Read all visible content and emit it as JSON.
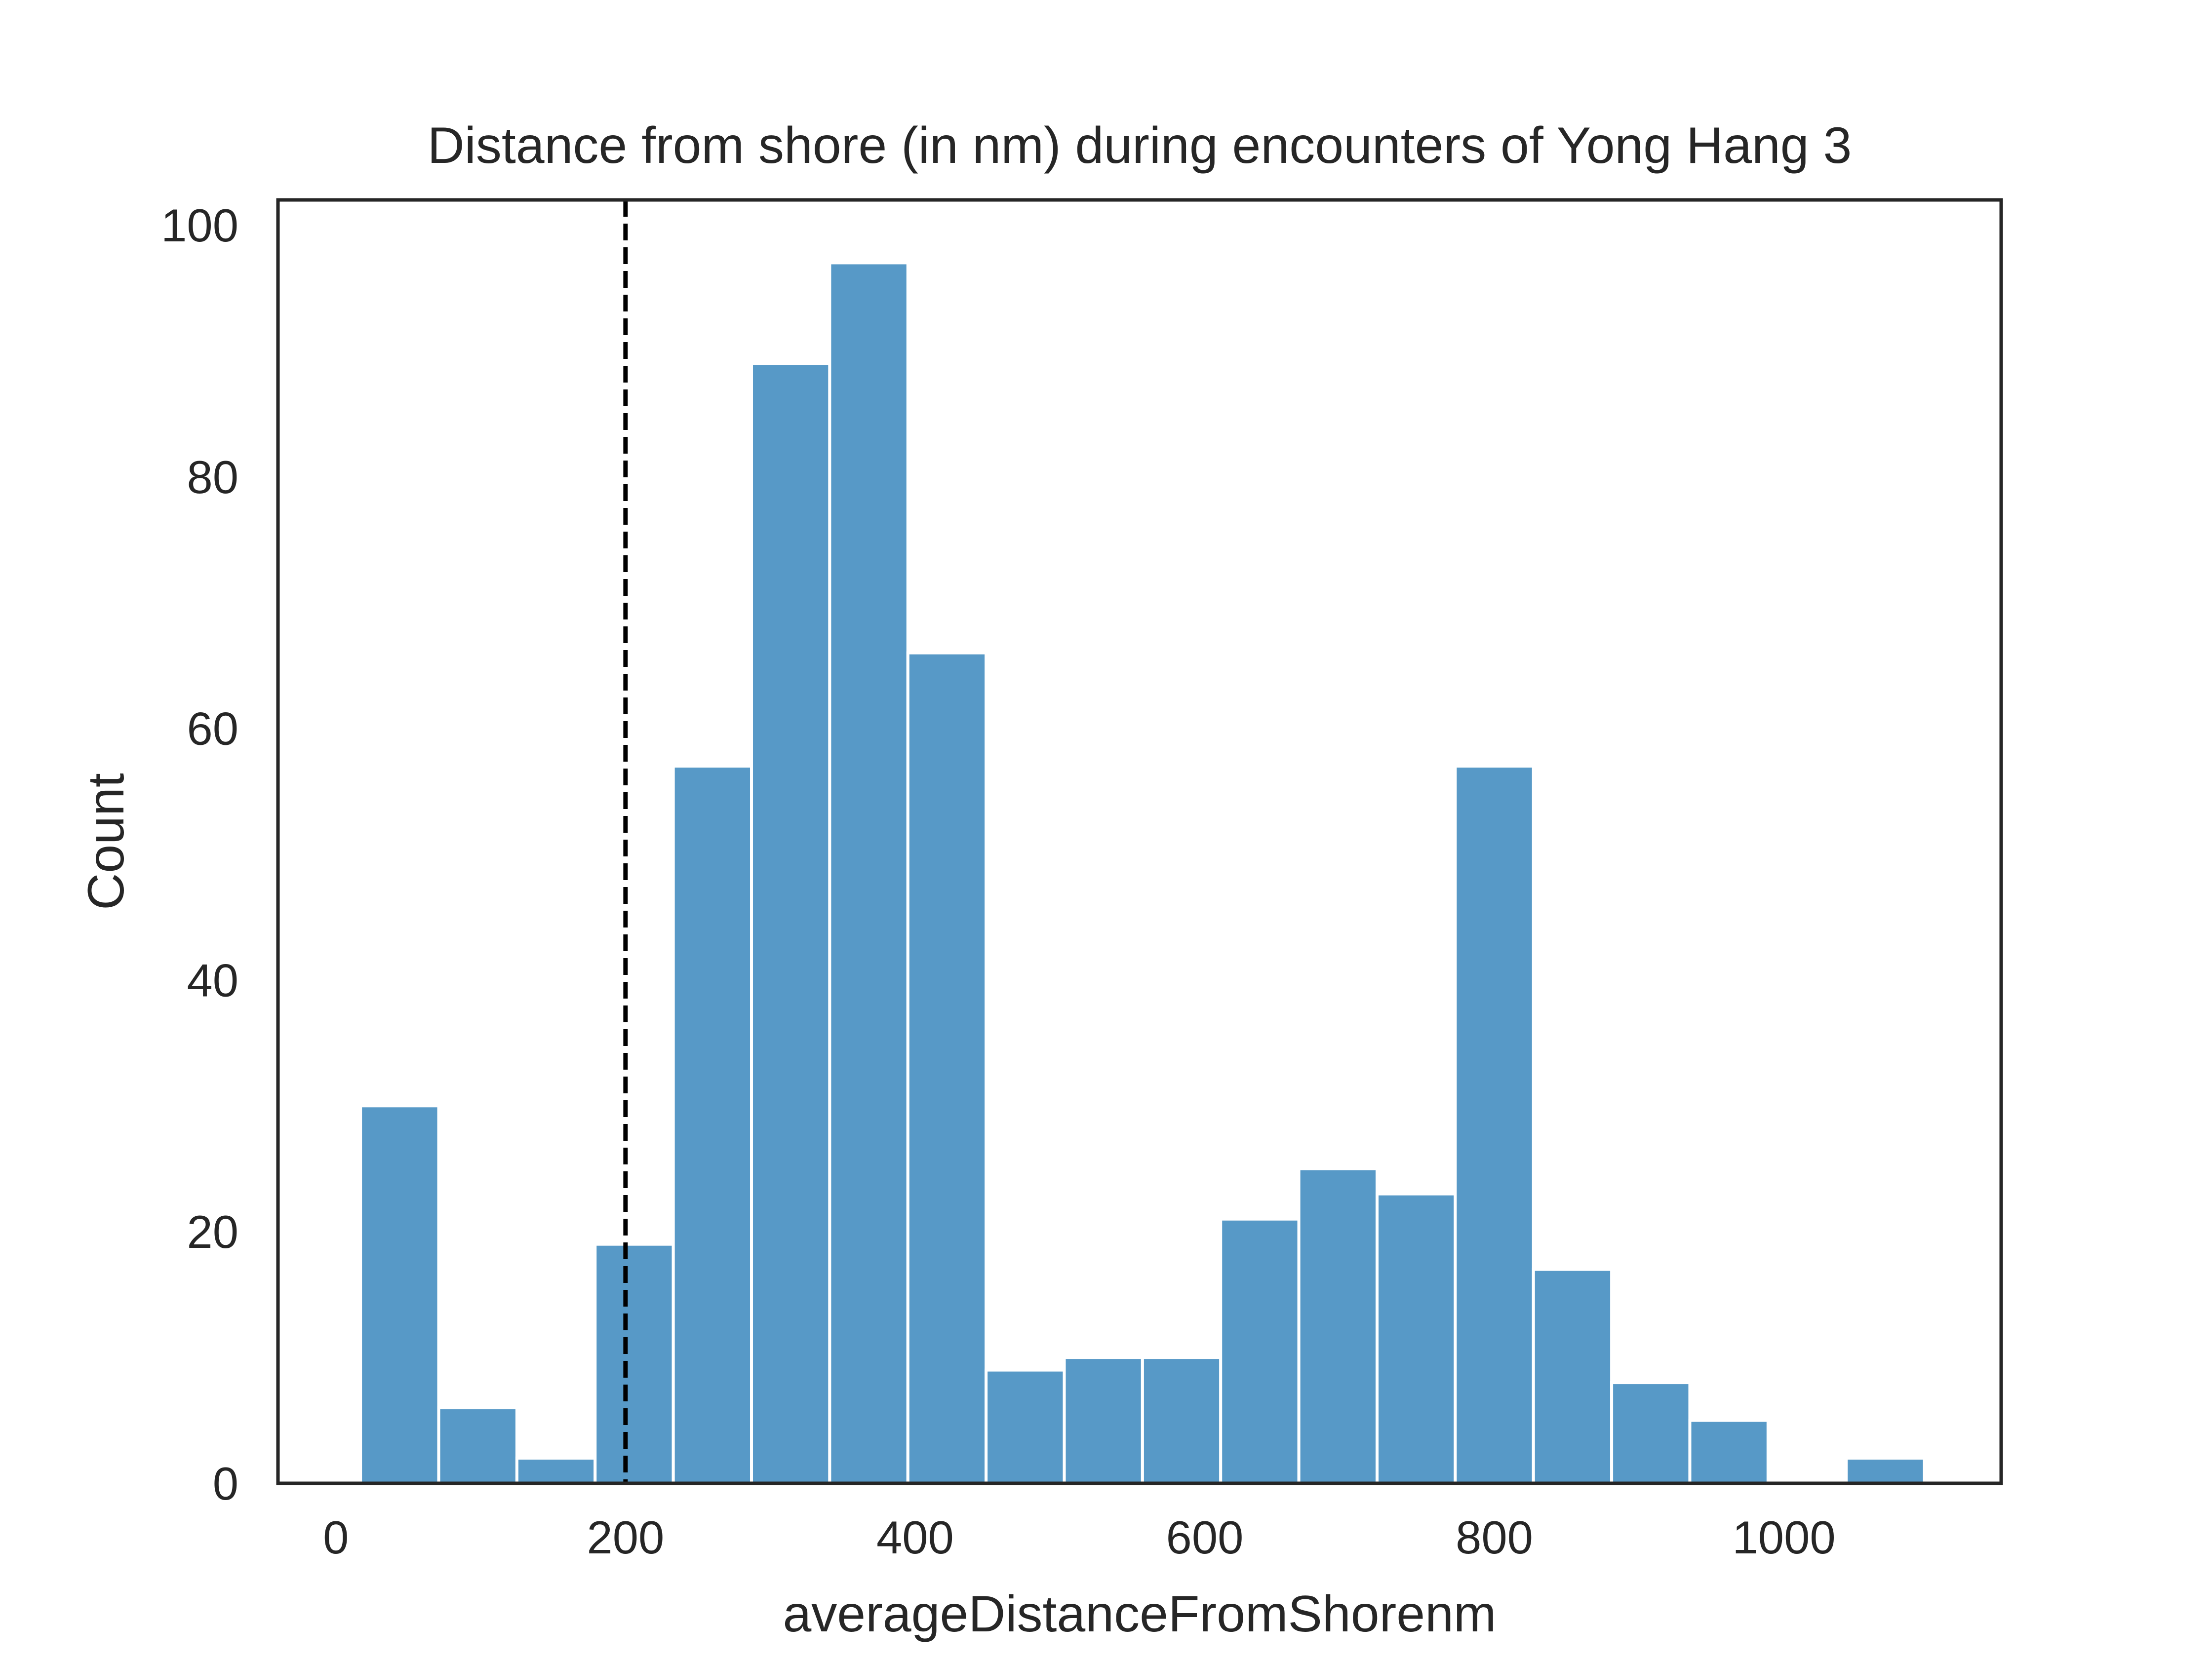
{
  "chart_data": {
    "type": "bar",
    "title": "Distance from shore (in nm) during encounters of Yong Hang 3",
    "xlabel": "averageDistanceFromShorenm",
    "ylabel": "Count",
    "xlim": [
      -40,
      1150
    ],
    "ylim": [
      0,
      102
    ],
    "x_ticks": [
      0,
      200,
      400,
      600,
      800,
      1000
    ],
    "y_ticks": [
      0,
      20,
      40,
      60,
      80,
      100
    ],
    "bin_start": 17,
    "bin_width": 54,
    "values": [
      30,
      6,
      2,
      19,
      57,
      89,
      97,
      66,
      9,
      10,
      10,
      21,
      25,
      23,
      57,
      17,
      8,
      5,
      0,
      2
    ],
    "reference_line": {
      "x": 200,
      "style": "dashed",
      "color": "#000000"
    },
    "grid": false,
    "bar_color": "#5799c7",
    "edge_color": "#ffffff"
  }
}
